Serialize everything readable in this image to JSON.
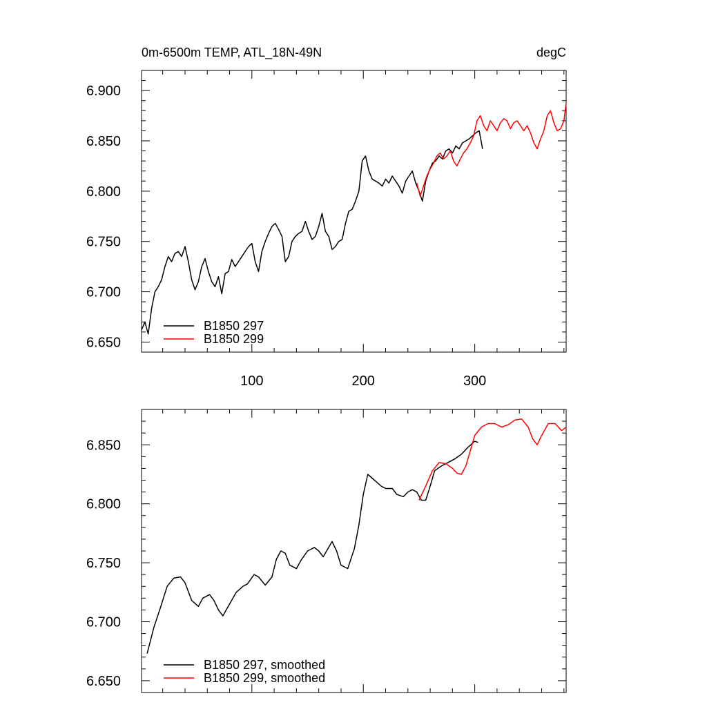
{
  "chart_data": [
    {
      "type": "line",
      "title_left": "0m-6500m TEMP, ATL_18N-49N",
      "title_right": "degC",
      "xlim": [
        1,
        382
      ],
      "ylim": [
        6.64,
        6.92
      ],
      "xticks": [
        100,
        200,
        300
      ],
      "xtick_labels": [
        "100",
        "200",
        "300"
      ],
      "yticks": [
        6.65,
        6.7,
        6.75,
        6.8,
        6.85,
        6.9
      ],
      "ytick_labels": [
        "6.650",
        "6.700",
        "6.750",
        "6.800",
        "6.850",
        "6.900"
      ],
      "legend_position": "bottom-left",
      "series": [
        {
          "name": "B1850 297",
          "color": "#000000",
          "x": [
            1,
            4,
            7,
            10,
            13,
            16,
            19,
            22,
            25,
            28,
            31,
            34,
            37,
            40,
            43,
            46,
            49,
            52,
            55,
            58,
            61,
            64,
            67,
            70,
            73,
            76,
            79,
            82,
            85,
            88,
            91,
            94,
            97,
            100,
            103,
            106,
            109,
            112,
            115,
            118,
            121,
            124,
            127,
            130,
            133,
            136,
            139,
            142,
            145,
            148,
            151,
            154,
            157,
            160,
            163,
            166,
            169,
            172,
            175,
            178,
            181,
            184,
            187,
            190,
            193,
            196,
            199,
            202,
            205,
            208,
            211,
            214,
            217,
            220,
            223,
            226,
            229,
            232,
            235,
            238,
            241,
            244,
            247,
            250,
            253,
            256,
            259,
            262,
            265,
            268,
            271,
            274,
            277,
            280,
            283,
            286,
            289,
            292,
            295,
            298,
            301,
            304,
            307
          ],
          "y": [
            6.662,
            6.67,
            6.658,
            6.683,
            6.7,
            6.705,
            6.712,
            6.725,
            6.735,
            6.73,
            6.738,
            6.74,
            6.735,
            6.745,
            6.73,
            6.712,
            6.702,
            6.71,
            6.725,
            6.733,
            6.72,
            6.71,
            6.705,
            6.715,
            6.698,
            6.718,
            6.72,
            6.732,
            6.725,
            6.73,
            6.735,
            6.74,
            6.745,
            6.748,
            6.73,
            6.72,
            6.74,
            6.75,
            6.758,
            6.765,
            6.768,
            6.762,
            6.755,
            6.73,
            6.735,
            6.75,
            6.755,
            6.758,
            6.76,
            6.77,
            6.76,
            6.752,
            6.755,
            6.765,
            6.778,
            6.76,
            6.755,
            6.742,
            6.745,
            6.75,
            6.752,
            6.768,
            6.78,
            6.782,
            6.79,
            6.8,
            6.83,
            6.835,
            6.82,
            6.812,
            6.81,
            6.808,
            6.805,
            6.812,
            6.808,
            6.815,
            6.81,
            6.805,
            6.798,
            6.81,
            6.815,
            6.82,
            6.808,
            6.8,
            6.79,
            6.81,
            6.82,
            6.828,
            6.83,
            6.835,
            6.832,
            6.84,
            6.842,
            6.838,
            6.845,
            6.842,
            6.848,
            6.85,
            6.852,
            6.855,
            6.858,
            6.86,
            6.842
          ]
        },
        {
          "name": "B1850 299",
          "color": "#ff0000",
          "x": [
            248,
            251,
            254,
            257,
            260,
            263,
            266,
            269,
            272,
            275,
            278,
            281,
            284,
            287,
            290,
            293,
            296,
            299,
            302,
            305,
            308,
            311,
            314,
            317,
            320,
            323,
            326,
            329,
            332,
            335,
            338,
            341,
            344,
            347,
            350,
            353,
            356,
            359,
            362,
            365,
            368,
            371,
            374,
            377,
            380,
            382
          ],
          "y": [
            6.808,
            6.795,
            6.805,
            6.815,
            6.822,
            6.828,
            6.835,
            6.838,
            6.832,
            6.835,
            6.84,
            6.83,
            6.825,
            6.832,
            6.838,
            6.842,
            6.848,
            6.855,
            6.87,
            6.875,
            6.865,
            6.86,
            6.87,
            6.865,
            6.86,
            6.868,
            6.872,
            6.87,
            6.862,
            6.868,
            6.87,
            6.865,
            6.86,
            6.865,
            6.858,
            6.848,
            6.842,
            6.852,
            6.86,
            6.875,
            6.88,
            6.868,
            6.86,
            6.862,
            6.87,
            6.888
          ]
        }
      ]
    },
    {
      "type": "line",
      "xlim": [
        1,
        382
      ],
      "ylim": [
        6.64,
        6.88
      ],
      "xticks": [
        100,
        200,
        300
      ],
      "yticks": [
        6.65,
        6.7,
        6.75,
        6.8,
        6.85
      ],
      "ytick_labels": [
        "6.650",
        "6.700",
        "6.750",
        "6.800",
        "6.850"
      ],
      "legend_position": "bottom-left",
      "series": [
        {
          "name": "B1850 297, smoothed",
          "color": "#000000",
          "x": [
            6,
            12,
            18,
            24,
            30,
            36,
            40,
            46,
            52,
            56,
            62,
            66,
            70,
            74,
            80,
            86,
            92,
            96,
            102,
            106,
            112,
            118,
            122,
            126,
            130,
            134,
            140,
            144,
            150,
            156,
            160,
            164,
            172,
            176,
            180,
            186,
            192,
            196,
            200,
            204,
            210,
            216,
            220,
            226,
            230,
            236,
            240,
            244,
            248,
            252,
            256,
            260,
            264,
            270,
            276,
            282,
            288,
            294,
            300,
            303
          ],
          "y": [
            6.673,
            6.695,
            6.712,
            6.73,
            6.737,
            6.738,
            6.733,
            6.718,
            6.713,
            6.72,
            6.723,
            6.718,
            6.71,
            6.705,
            6.715,
            6.725,
            6.73,
            6.732,
            6.74,
            6.738,
            6.731,
            6.738,
            6.753,
            6.76,
            6.758,
            6.748,
            6.745,
            6.752,
            6.76,
            6.763,
            6.76,
            6.755,
            6.768,
            6.76,
            6.748,
            6.745,
            6.762,
            6.782,
            6.808,
            6.825,
            6.82,
            6.815,
            6.813,
            6.813,
            6.808,
            6.806,
            6.81,
            6.812,
            6.81,
            6.803,
            6.803,
            6.815,
            6.828,
            6.832,
            6.835,
            6.838,
            6.842,
            6.848,
            6.853,
            6.852
          ]
        },
        {
          "name": "B1850 299, smoothed",
          "color": "#ff0000",
          "x": [
            250,
            256,
            262,
            268,
            274,
            280,
            284,
            288,
            292,
            296,
            300,
            306,
            312,
            318,
            324,
            330,
            336,
            342,
            348,
            352,
            356,
            360,
            366,
            372,
            378,
            382
          ],
          "y": [
            6.803,
            6.815,
            6.828,
            6.835,
            6.834,
            6.83,
            6.826,
            6.825,
            6.832,
            6.845,
            6.858,
            6.865,
            6.868,
            6.868,
            6.865,
            6.867,
            6.871,
            6.872,
            6.865,
            6.855,
            6.85,
            6.858,
            6.868,
            6.868,
            6.862,
            6.865
          ]
        }
      ]
    }
  ]
}
